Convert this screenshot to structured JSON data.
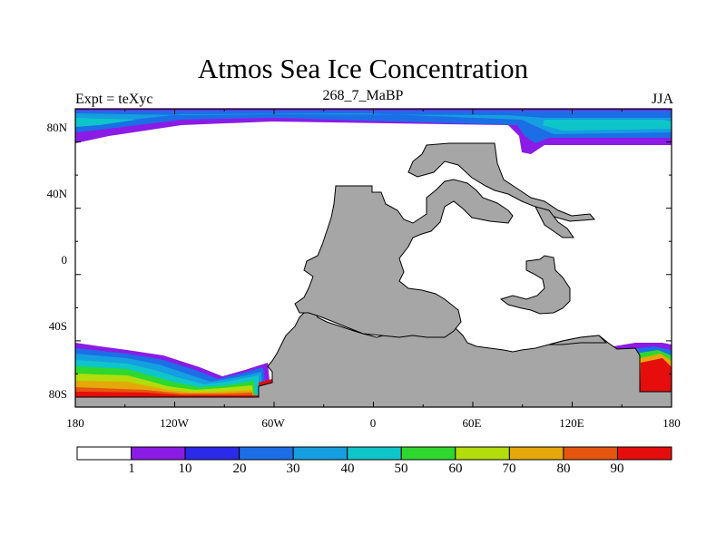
{
  "title": "Atmos Sea Ice Concentration",
  "subtitle": "268_7_MaBP",
  "left_label": "Expt = teXyc",
  "right_label": "JJA",
  "y_ticks": [
    "80N",
    "40N",
    "0",
    "40S",
    "80S"
  ],
  "x_ticks": [
    "180",
    "120W",
    "60W",
    "0",
    "60E",
    "120E",
    "180"
  ],
  "colorbar": {
    "colors": [
      "#ffffff",
      "#8a1ce6",
      "#2a2ae8",
      "#1c6ee6",
      "#159ee0",
      "#0ec6c9",
      "#2ed82e",
      "#b2dc0a",
      "#e4a80a",
      "#e5550e",
      "#e60d0d"
    ],
    "labels": [
      "1",
      "10",
      "20",
      "30",
      "40",
      "50",
      "60",
      "70",
      "80",
      "90"
    ]
  },
  "colors": {
    "land": "#a6a6a6",
    "coastline": "#000000"
  }
}
